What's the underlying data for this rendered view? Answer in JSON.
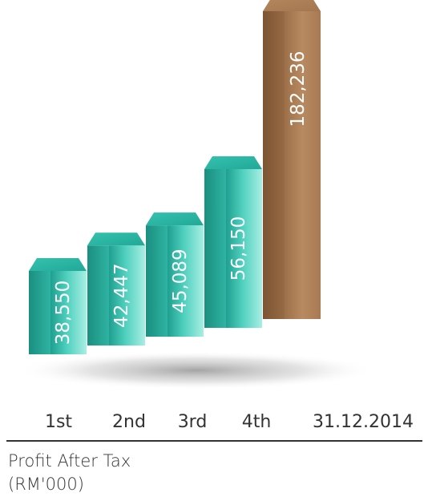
{
  "chart_data": {
    "type": "bar",
    "categories": [
      "1st",
      "2nd",
      "3rd",
      "4th",
      "31.12.2014"
    ],
    "values": [
      38550,
      42447,
      45089,
      56150,
      182236
    ],
    "value_labels": [
      "38,550",
      "42,447",
      "45,089",
      "56,150",
      "182,236"
    ],
    "title": "Profit After Tax",
    "unit": "(RM'000)",
    "xlabel": "",
    "ylabel": "",
    "grid": false,
    "legend": "none",
    "style": "3d-columns",
    "colors": {
      "standard_bar": "#3dbfad",
      "highlight_bar": "#a87a54",
      "highlight_index": 4,
      "axis_line": "#333333",
      "text": "#333333"
    }
  }
}
